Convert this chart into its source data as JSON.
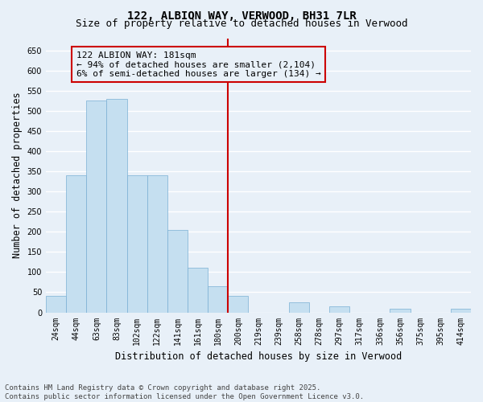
{
  "title": "122, ALBION WAY, VERWOOD, BH31 7LR",
  "subtitle": "Size of property relative to detached houses in Verwood",
  "xlabel": "Distribution of detached houses by size in Verwood",
  "ylabel": "Number of detached properties",
  "bar_labels": [
    "24sqm",
    "44sqm",
    "63sqm",
    "83sqm",
    "102sqm",
    "122sqm",
    "141sqm",
    "161sqm",
    "180sqm",
    "200sqm",
    "219sqm",
    "239sqm",
    "258sqm",
    "278sqm",
    "297sqm",
    "317sqm",
    "336sqm",
    "356sqm",
    "375sqm",
    "395sqm",
    "414sqm"
  ],
  "bar_values": [
    40,
    340,
    525,
    530,
    340,
    340,
    205,
    110,
    65,
    40,
    0,
    0,
    25,
    0,
    15,
    0,
    0,
    10,
    0,
    0,
    10
  ],
  "vline_index": 8,
  "highlight_color": "#cc0000",
  "bar_color": "#c5dff0",
  "bar_edge_color": "#7aafd4",
  "ylim": [
    0,
    680
  ],
  "yticks": [
    0,
    50,
    100,
    150,
    200,
    250,
    300,
    350,
    400,
    450,
    500,
    550,
    600,
    650
  ],
  "annotation_text": "122 ALBION WAY: 181sqm\n← 94% of detached houses are smaller (2,104)\n6% of semi-detached houses are larger (134) →",
  "footer_line1": "Contains HM Land Registry data © Crown copyright and database right 2025.",
  "footer_line2": "Contains public sector information licensed under the Open Government Licence v3.0.",
  "background_color": "#e8f0f8",
  "grid_color": "#ffffff",
  "title_fontsize": 10,
  "subtitle_fontsize": 9,
  "axis_label_fontsize": 8.5,
  "tick_fontsize": 7,
  "annotation_fontsize": 8,
  "footer_fontsize": 6.5
}
